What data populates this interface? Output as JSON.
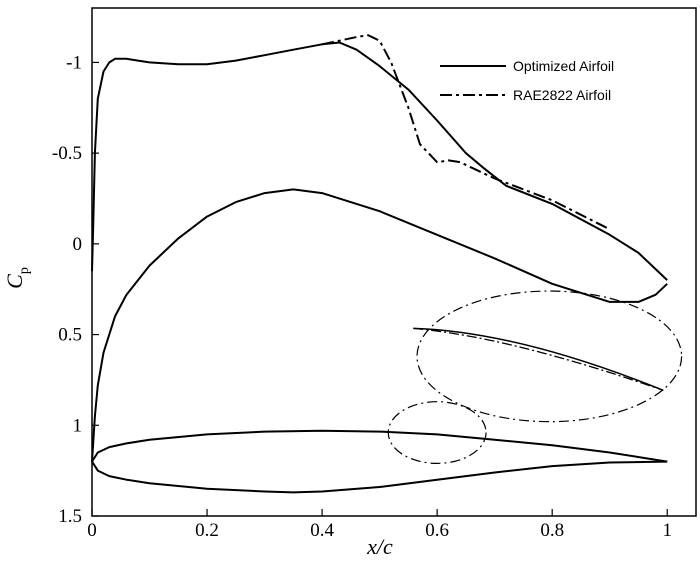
{
  "chart_data": {
    "type": "line",
    "x_axis": {
      "label": "x/c",
      "ticks": [
        "0",
        "0.2",
        "0.4",
        "0.6",
        "0.8",
        "1"
      ],
      "range": [
        0,
        1.05
      ]
    },
    "y_axis": {
      "label": "C",
      "label_subscript": "p",
      "inverted": true,
      "ticks": [
        "-1",
        "-0.5",
        "0",
        "0.5",
        "1",
        "1.5"
      ],
      "range": [
        -1.3,
        1.5
      ]
    },
    "legend": {
      "position": "top-right",
      "entries": [
        {
          "label": "Optimized Airfoil",
          "style": "solid"
        },
        {
          "label": "RAE2822 Airfoil",
          "style": "dashdot"
        }
      ]
    },
    "grid": false,
    "series": [
      {
        "name": "Optimized Airfoil",
        "style": "solid",
        "color": "#000000",
        "segments": [
          {
            "part": "upper surface Cp",
            "x": [
              0,
              0.002,
              0.005,
              0.01,
              0.02,
              0.03,
              0.04,
              0.06,
              0.08,
              0.1,
              0.15,
              0.2,
              0.25,
              0.3,
              0.35,
              0.4,
              0.43,
              0.46,
              0.5,
              0.55,
              0.6,
              0.65,
              0.68,
              0.72,
              0.8,
              0.9,
              0.95,
              1.0
            ],
            "y": [
              0.15,
              -0.1,
              -0.5,
              -0.8,
              -0.95,
              -1.0,
              -1.02,
              -1.02,
              -1.01,
              -1.0,
              -0.99,
              -0.99,
              -1.01,
              -1.04,
              -1.07,
              -1.1,
              -1.11,
              -1.07,
              -0.98,
              -0.85,
              -0.68,
              -0.5,
              -0.42,
              -0.32,
              -0.22,
              -0.05,
              0.05,
              0.2
            ]
          },
          {
            "part": "lower surface Cp",
            "x": [
              0,
              0.005,
              0.01,
              0.02,
              0.04,
              0.06,
              0.1,
              0.15,
              0.2,
              0.25,
              0.3,
              0.35,
              0.4,
              0.5,
              0.6,
              0.7,
              0.8,
              0.9,
              0.95,
              0.98,
              1.0
            ],
            "y": [
              1.2,
              0.95,
              0.78,
              0.6,
              0.4,
              0.28,
              0.12,
              -0.03,
              -0.15,
              -0.23,
              -0.28,
              -0.3,
              -0.28,
              -0.18,
              -0.05,
              0.08,
              0.22,
              0.32,
              0.32,
              0.28,
              0.22
            ]
          },
          {
            "part": "airfoil upper contour",
            "x": [
              0,
              0.01,
              0.03,
              0.06,
              0.1,
              0.2,
              0.3,
              0.4,
              0.5,
              0.6,
              0.7,
              0.8,
              0.9,
              1.0
            ],
            "y": [
              1.2,
              1.15,
              1.12,
              1.1,
              1.08,
              1.05,
              1.035,
              1.03,
              1.035,
              1.05,
              1.08,
              1.11,
              1.15,
              1.2
            ]
          },
          {
            "part": "airfoil lower contour",
            "x": [
              0,
              0.01,
              0.03,
              0.06,
              0.1,
              0.2,
              0.3,
              0.35,
              0.4,
              0.5,
              0.6,
              0.7,
              0.8,
              0.9,
              1.0
            ],
            "y": [
              1.2,
              1.25,
              1.28,
              1.3,
              1.32,
              1.35,
              1.365,
              1.37,
              1.365,
              1.34,
              1.3,
              1.26,
              1.225,
              1.205,
              1.2
            ]
          }
        ]
      },
      {
        "name": "RAE2822 Airfoil",
        "style": "dashdot",
        "color": "#000000",
        "segments": [
          {
            "part": "upper surface Cp",
            "x": [
              0.4,
              0.43,
              0.46,
              0.48,
              0.5,
              0.52,
              0.55,
              0.57,
              0.6,
              0.62,
              0.64,
              0.66,
              0.7,
              0.75,
              0.8,
              0.9
            ],
            "y": [
              -1.1,
              -1.12,
              -1.14,
              -1.15,
              -1.12,
              -1.0,
              -0.75,
              -0.55,
              -0.45,
              -0.46,
              -0.45,
              -0.42,
              -0.36,
              -0.3,
              -0.24,
              -0.08
            ]
          }
        ]
      }
    ],
    "annotations": [
      {
        "type": "ellipse",
        "style": "dashdot",
        "cx": 0.6,
        "cy": 1.04,
        "rx": 0.085,
        "ry": 0.17
      },
      {
        "type": "ellipse",
        "style": "dashdot",
        "cx": 0.795,
        "cy": 0.62,
        "rx": 0.23,
        "ry": 0.36
      }
    ]
  }
}
